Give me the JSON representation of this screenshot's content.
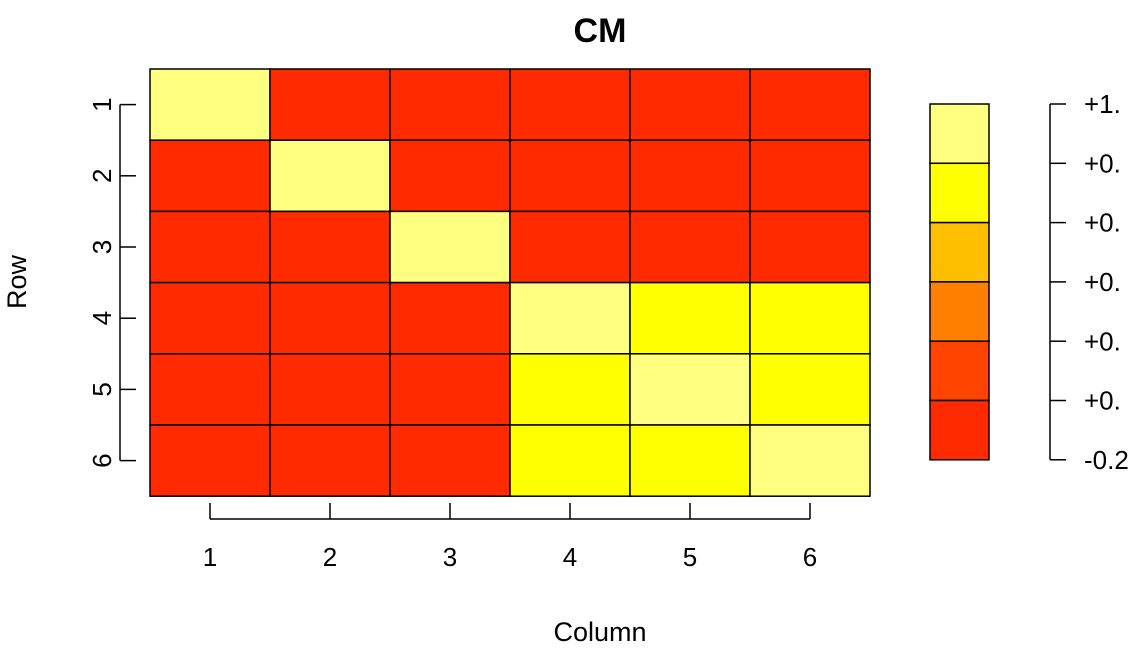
{
  "chart_data": {
    "type": "heatmap",
    "title": "CM",
    "xlabel": "Column",
    "ylabel": "Row",
    "rows": [
      "1",
      "2",
      "3",
      "4",
      "5",
      "6"
    ],
    "columns": [
      "1",
      "2",
      "3",
      "4",
      "5",
      "6"
    ],
    "values": [
      [
        1.0,
        0.0,
        0.0,
        0.0,
        -0.2,
        0.0
      ],
      [
        0.0,
        1.0,
        -0.2,
        0.0,
        -0.2,
        -0.2
      ],
      [
        0.0,
        -0.2,
        1.0,
        0.0,
        0.0,
        0.0
      ],
      [
        0.0,
        0.0,
        0.0,
        1.0,
        0.8,
        0.8
      ],
      [
        -0.2,
        -0.2,
        0.0,
        0.8,
        1.0,
        0.8
      ],
      [
        0.0,
        -0.2,
        0.0,
        0.8,
        0.8,
        1.0
      ]
    ],
    "color_scale": {
      "breaks": [
        -0.2,
        0.0,
        0.2,
        0.4,
        0.6,
        0.8,
        1.0
      ],
      "colors": [
        "#FF2A00",
        "#FF4400",
        "#FF8000",
        "#FFBF00",
        "#FFFF00",
        "#FFFF80"
      ],
      "labels": [
        "+1.",
        "+0.",
        "+0.",
        "+0.",
        "+0.",
        "+0.",
        "-0.2"
      ]
    },
    "grid": false,
    "legend_position": "right"
  }
}
